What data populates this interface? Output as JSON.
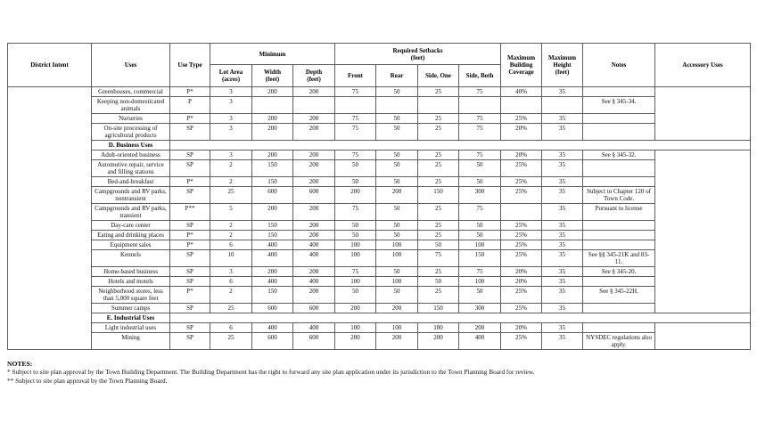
{
  "table": {
    "header": {
      "district_intent": "District Intent",
      "uses": "Uses",
      "use_type": "Use Type",
      "minimum_group": "Minimum",
      "lot_area": "Lot Area\n(acres)",
      "width": "Width\n(feet)",
      "depth": "Depth\n(feet)",
      "setbacks_group": "Required Setbacks\n(feet)",
      "front": "Front",
      "rear": "Rear",
      "side_one": "Side, One",
      "side_both": "Side, Both",
      "max_building_coverage": "Maximum\nBuilding\nCoverage",
      "max_height": "Maximum\nHeight\n(feet)",
      "notes": "Notes",
      "accessory_uses": "Accessory Uses"
    },
    "sections": [
      {
        "label": "",
        "rows": [
          {
            "use": "Greenhouses, commercial",
            "use_type": "P*",
            "lot_area": "3",
            "width": "200",
            "depth": "200",
            "front": "75",
            "rear": "50",
            "side_one": "25",
            "side_both": "75",
            "coverage": "40%",
            "height": "35",
            "notes": ""
          },
          {
            "use": "Keeping non-domesticated animals",
            "use_type": "P",
            "lot_area": "3",
            "width": "",
            "depth": "",
            "front": "",
            "rear": "",
            "side_one": "",
            "side_both": "",
            "coverage": "",
            "height": "",
            "notes": "See § 345-34."
          },
          {
            "use": "Nurseries",
            "use_type": "P*",
            "lot_area": "3",
            "width": "200",
            "depth": "200",
            "front": "75",
            "rear": "50",
            "side_one": "25",
            "side_both": "75",
            "coverage": "25%",
            "height": "35",
            "notes": ""
          },
          {
            "use": "On-site processing of agricultural products",
            "use_type": "SP",
            "lot_area": "3",
            "width": "200",
            "depth": "200",
            "front": "75",
            "rear": "50",
            "side_one": "25",
            "side_both": "75",
            "coverage": "20%",
            "height": "35",
            "notes": ""
          }
        ]
      },
      {
        "label": "D. Business Uses",
        "rows": [
          {
            "use": "Adult-oriented business",
            "use_type": "SP",
            "lot_area": "3",
            "width": "200",
            "depth": "200",
            "front": "75",
            "rear": "50",
            "side_one": "25",
            "side_both": "75",
            "coverage": "20%",
            "height": "35",
            "notes": "See § 345-32."
          },
          {
            "use": "Automotive repair, service and filling stations",
            "use_type": "SP",
            "lot_area": "2",
            "width": "150",
            "depth": "200",
            "front": "50",
            "rear": "50",
            "side_one": "25",
            "side_both": "50",
            "coverage": "25%",
            "height": "35",
            "notes": ""
          },
          {
            "use": "Bed-and-breakfast",
            "use_type": "P*",
            "lot_area": "2",
            "width": "150",
            "depth": "200",
            "front": "50",
            "rear": "50",
            "side_one": "25",
            "side_both": "50",
            "coverage": "25%",
            "height": "35",
            "notes": ""
          },
          {
            "use": "Campgrounds and RV parks, nontransient",
            "use_type": "SP",
            "lot_area": "25",
            "width": "600",
            "depth": "600",
            "front": "200",
            "rear": "200",
            "side_one": "150",
            "side_both": "300",
            "coverage": "25%",
            "height": "35",
            "notes": "Subject to Chapter 120 of Town Code."
          },
          {
            "use": "Campgrounds and RV parks, transient",
            "use_type": "P**",
            "lot_area": "5",
            "width": "200",
            "depth": "200",
            "front": "75",
            "rear": "50",
            "side_one": "25",
            "side_both": "75",
            "coverage": "",
            "height": "35",
            "notes": "Pursuant to license"
          },
          {
            "use": "Day-care center",
            "use_type": "SP",
            "lot_area": "2",
            "width": "150",
            "depth": "200",
            "front": "50",
            "rear": "50",
            "side_one": "25",
            "side_both": "50",
            "coverage": "25%",
            "height": "35",
            "notes": ""
          },
          {
            "use": "Eating and drinking places",
            "use_type": "P*",
            "lot_area": "2",
            "width": "150",
            "depth": "200",
            "front": "50",
            "rear": "50",
            "side_one": "25",
            "side_both": "50",
            "coverage": "25%",
            "height": "35",
            "notes": ""
          },
          {
            "use": "Equipment sales",
            "use_type": "P*",
            "lot_area": "6",
            "width": "400",
            "depth": "400",
            "front": "100",
            "rear": "100",
            "side_one": "50",
            "side_both": "100",
            "coverage": "25%",
            "height": "35",
            "notes": ""
          },
          {
            "use": "Kennels",
            "use_type": "SP",
            "lot_area": "10",
            "width": "400",
            "depth": "400",
            "front": "100",
            "rear": "100",
            "side_one": "75",
            "side_both": "150",
            "coverage": "25%",
            "height": "35",
            "notes": "See §§ 345-21K and 83-11."
          },
          {
            "use": "Home-based business",
            "use_type": "SP",
            "lot_area": "3",
            "width": "200",
            "depth": "200",
            "front": "75",
            "rear": "50",
            "side_one": "25",
            "side_both": "75",
            "coverage": "20%",
            "height": "35",
            "notes": "See § 345-20."
          },
          {
            "use": "Hotels and motels",
            "use_type": "SP",
            "lot_area": "6",
            "width": "400",
            "depth": "400",
            "front": "100",
            "rear": "100",
            "side_one": "50",
            "side_both": "100",
            "coverage": "20%",
            "height": "35",
            "notes": ""
          },
          {
            "use": "Neighborhood stores, less than 5,000 square feet",
            "use_type": "P*",
            "lot_area": "2",
            "width": "150",
            "depth": "200",
            "front": "50",
            "rear": "50",
            "side_one": "25",
            "side_both": "50",
            "coverage": "25%",
            "height": "35",
            "notes": "See § 345-22H."
          },
          {
            "use": "Summer camps",
            "use_type": "SP",
            "lot_area": "25",
            "width": "600",
            "depth": "600",
            "front": "200",
            "rear": "200",
            "side_one": "150",
            "side_both": "300",
            "coverage": "25%",
            "height": "35",
            "notes": ""
          }
        ]
      },
      {
        "label": "E. Industrial Uses",
        "rows": [
          {
            "use": "Light industrial uses",
            "use_type": "SP",
            "lot_area": "6",
            "width": "400",
            "depth": "400",
            "front": "100",
            "rear": "100",
            "side_one": "100",
            "side_both": "200",
            "coverage": "20%",
            "height": "35",
            "notes": ""
          },
          {
            "use": "Mining",
            "use_type": "SP",
            "lot_area": "25",
            "width": "600",
            "depth": "600",
            "front": "200",
            "rear": "200",
            "side_one": "200",
            "side_both": "400",
            "coverage": "25%",
            "height": "35",
            "notes": "NYSDEC regulations also apply."
          }
        ]
      }
    ]
  },
  "notes_block": {
    "title": "NOTES:",
    "lines": [
      "* Subject to site plan approval by the Town Building Department. The Building Department has the right to forward any site plan application under its jurisdiction to the Town Planning Board for review.",
      "** Subject to site plan approval by the Town Planning Board."
    ]
  }
}
